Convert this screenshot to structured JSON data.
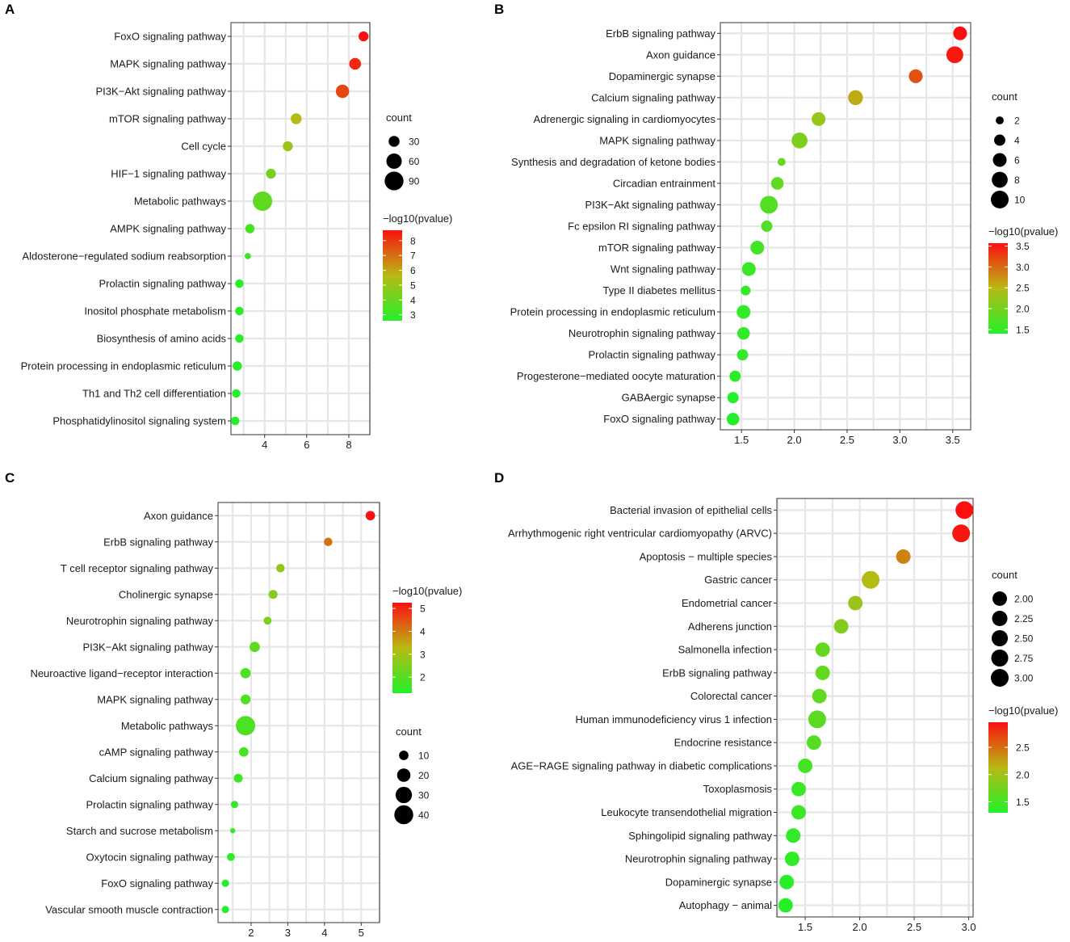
{
  "chart_data": [
    {
      "panel": "A",
      "type": "scatter",
      "categories": [
        "FoxO signaling pathway",
        "MAPK signaling pathway",
        "PI3K−Akt signaling pathway",
        "mTOR signaling pathway",
        "Cell cycle",
        "HIF−1 signaling pathway",
        "Metabolic pathways",
        "AMPK signaling pathway",
        "Aldosterone−regulated sodium reabsorption",
        "Prolactin signaling pathway",
        "Inositol phosphate metabolism",
        "Biosynthesis of amino acids",
        "Protein processing in endoplasmic reticulum",
        "Th1 and Th2 cell differentiation",
        "Phosphatidylinositol signaling system"
      ],
      "values": [
        8.7,
        8.3,
        7.7,
        5.5,
        5.1,
        4.3,
        3.9,
        3.3,
        3.2,
        2.8,
        2.8,
        2.8,
        2.7,
        2.65,
        2.6
      ],
      "counts": [
        25,
        35,
        45,
        30,
        25,
        25,
        95,
        22,
        10,
        18,
        18,
        18,
        22,
        18,
        18
      ],
      "xlim": [
        2.4,
        9.0
      ],
      "xticks": [
        4,
        6,
        8
      ],
      "xtick_labels": [
        "4",
        "6",
        "8"
      ],
      "size_legend": {
        "title": "count",
        "values": [
          30,
          60,
          90
        ],
        "labels": [
          "30",
          "60",
          "90"
        ],
        "max": 95
      },
      "color_legend": {
        "title": "−log10(pvalue)",
        "min": 2.6,
        "max": 8.7,
        "ticks": [
          3,
          4,
          5,
          6,
          7,
          8
        ],
        "tick_labels": [
          "3",
          "4",
          "5",
          "6",
          "7",
          "8"
        ]
      },
      "legend_order": "size-first"
    },
    {
      "panel": "B",
      "type": "scatter",
      "categories": [
        "ErbB signaling pathway",
        "Axon guidance",
        "Dopaminergic synapse",
        "Calcium signaling pathway",
        "Adrenergic signaling in cardiomyocytes",
        "MAPK signaling pathway",
        "Synthesis and degradation of ketone bodies",
        "Circadian entrainment",
        "PI3K−Akt signaling pathway",
        "Fc epsilon RI signaling pathway",
        "mTOR signaling pathway",
        "Wnt signaling pathway",
        "Type II diabetes mellitus",
        "Protein processing in endoplasmic reticulum",
        "Neurotrophin signaling pathway",
        "Prolactin signaling pathway",
        "Progesterone−mediated oocyte maturation",
        "GABAergic synapse",
        "FoxO signaling pathway"
      ],
      "values": [
        3.57,
        3.52,
        3.15,
        2.58,
        2.23,
        2.05,
        1.88,
        1.84,
        1.76,
        1.74,
        1.65,
        1.57,
        1.54,
        1.52,
        1.52,
        1.51,
        1.44,
        1.42,
        1.42
      ],
      "counts": [
        6,
        9,
        6,
        7,
        6,
        8,
        2,
        5,
        10,
        4,
        6,
        6,
        3,
        6,
        5,
        4,
        4,
        4,
        5
      ],
      "xlim": [
        1.3,
        3.67
      ],
      "xticks": [
        1.5,
        2.0,
        2.5,
        3.0,
        3.5
      ],
      "xtick_labels": [
        "1.5",
        "2.0",
        "2.5",
        "3.0",
        "3.5"
      ],
      "size_legend": {
        "title": "count",
        "values": [
          2,
          4,
          6,
          8,
          10
        ],
        "labels": [
          "2",
          "4",
          "6",
          "8",
          "10"
        ],
        "max": 10
      },
      "color_legend": {
        "title": "−log10(pvalue)",
        "min": 1.4,
        "max": 3.57,
        "ticks": [
          1.5,
          2.0,
          2.5,
          3.0,
          3.5
        ],
        "tick_labels": [
          "1.5",
          "2.0",
          "2.5",
          "3.0",
          "3.5"
        ]
      },
      "legend_order": "size-first"
    },
    {
      "panel": "C",
      "type": "scatter",
      "categories": [
        "Axon guidance",
        "ErbB signaling pathway",
        "T cell receptor signaling pathway",
        "Cholinergic synapse",
        "Neurotrophin signaling pathway",
        "PI3K−Akt signaling pathway",
        "Neuroactive ligand−receptor interaction",
        "MAPK signaling pathway",
        "Metabolic pathways",
        "cAMP signaling pathway",
        "Calcium signaling pathway",
        "Prolactin signaling pathway",
        "Starch and sucrose metabolism",
        "Oxytocin signaling pathway",
        "FoxO signaling pathway",
        "Vascular smooth muscle contraction"
      ],
      "values": [
        5.25,
        4.1,
        2.8,
        2.6,
        2.45,
        2.1,
        1.85,
        1.85,
        1.85,
        1.8,
        1.65,
        1.55,
        1.5,
        1.45,
        1.3,
        1.3
      ],
      "counts": [
        10,
        8,
        8,
        9,
        7,
        12,
        12,
        11,
        42,
        10,
        9,
        6,
        3,
        7,
        6,
        6
      ],
      "xlim": [
        1.1,
        5.5
      ],
      "xticks": [
        2,
        3,
        4,
        5
      ],
      "xtick_labels": [
        "2",
        "3",
        "4",
        "5"
      ],
      "size_legend": {
        "title": "count",
        "values": [
          10,
          20,
          30,
          40
        ],
        "labels": [
          "10",
          "20",
          "30",
          "40"
        ],
        "max": 42
      },
      "color_legend": {
        "title": "−log10(pvalue)",
        "min": 1.3,
        "max": 5.25,
        "ticks": [
          2,
          3,
          4,
          5
        ],
        "tick_labels": [
          "2",
          "3",
          "4",
          "5"
        ]
      },
      "legend_order": "color-first"
    },
    {
      "panel": "D",
      "type": "scatter",
      "categories": [
        "Bacterial invasion of epithelial cells",
        "Arrhythmogenic right ventricular cardiomyopathy (ARVC)",
        "Apoptosis − multiple species",
        "Gastric cancer",
        "Endometrial cancer",
        "Adherens junction",
        "Salmonella infection",
        "ErbB signaling pathway",
        "Colorectal cancer",
        "Human immunodeficiency virus 1 infection",
        "Endocrine resistance",
        "AGE−RAGE signaling pathway in diabetic complications",
        "Toxoplasmosis",
        "Leukocyte transendothelial migration",
        "Sphingolipid signaling pathway",
        "Neurotrophin signaling pathway",
        "Dopaminergic synapse",
        "Autophagy − animal"
      ],
      "values": [
        2.96,
        2.93,
        2.4,
        2.1,
        1.96,
        1.83,
        1.66,
        1.66,
        1.63,
        1.61,
        1.58,
        1.5,
        1.44,
        1.44,
        1.39,
        1.38,
        1.33,
        1.32
      ],
      "counts": [
        3,
        3,
        2,
        3,
        2,
        2,
        2,
        2,
        2,
        3,
        2,
        2,
        2,
        2,
        2,
        2,
        2,
        2
      ],
      "xlim": [
        1.24,
        3.04
      ],
      "xticks": [
        1.5,
        2.0,
        2.5,
        3.0
      ],
      "xtick_labels": [
        "1.5",
        "2.0",
        "2.5",
        "3.0"
      ],
      "size_legend": {
        "title": "count",
        "values": [
          2.0,
          2.25,
          2.5,
          2.75,
          3.0
        ],
        "labels": [
          "2.00",
          "2.25",
          "2.50",
          "2.75",
          "3.00"
        ],
        "max": 3.0
      },
      "color_legend": {
        "title": "−log10(pvalue)",
        "min": 1.3,
        "max": 2.96,
        "ticks": [
          1.5,
          2.0,
          2.5
        ],
        "tick_labels": [
          "1.5",
          "2.0",
          "2.5"
        ]
      },
      "legend_order": "size-first"
    }
  ],
  "colors": {
    "low": "#22f02a",
    "mid": "#b8b914",
    "high": "#fb1010"
  }
}
